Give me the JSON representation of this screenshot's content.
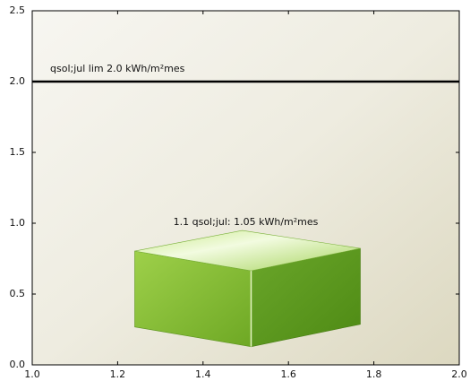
{
  "chart_data": {
    "type": "bar",
    "x": [
      1.5
    ],
    "values": [
      1.05
    ],
    "value_labels": [
      "1.1 qsol;jul: 1.05 kWh/m²mes"
    ],
    "color": "#7cba2e",
    "hline": {
      "value": 2.0,
      "label": "qsol;jul lim 2.0 kWh/m²mes",
      "color": "#000000"
    },
    "xlim": [
      1.0,
      2.0
    ],
    "xticks": [
      {
        "value": 1.0,
        "label": "1.0"
      },
      {
        "value": 1.2,
        "label": "1.2"
      },
      {
        "value": 1.4,
        "label": "1.4"
      },
      {
        "value": 1.6,
        "label": "1.6"
      },
      {
        "value": 1.8,
        "label": "1.8"
      },
      {
        "value": 2.0,
        "label": "2.0"
      }
    ],
    "ylim": [
      0.0,
      2.5
    ],
    "yticks": [
      {
        "value": 0.0,
        "label": "0.0"
      },
      {
        "value": 0.5,
        "label": "0.5"
      },
      {
        "value": 1.0,
        "label": "1.0"
      },
      {
        "value": 1.5,
        "label": "1.5"
      },
      {
        "value": 2.0,
        "label": "2.0"
      },
      {
        "value": 2.5,
        "label": "2.5"
      }
    ]
  }
}
